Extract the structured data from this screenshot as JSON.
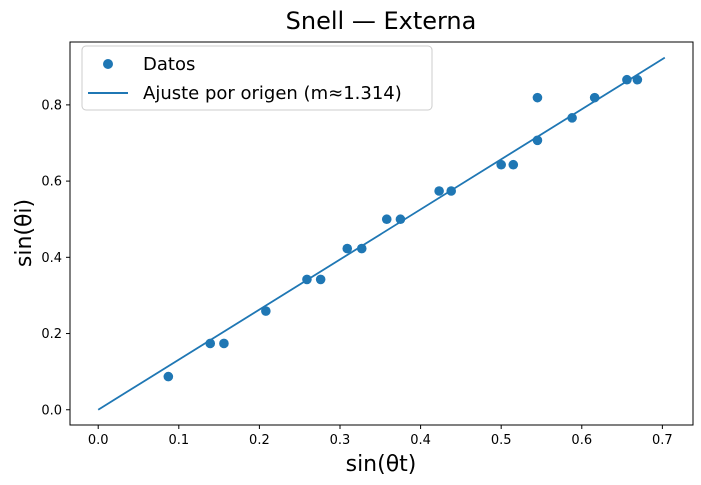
{
  "chart_data": {
    "type": "scatter",
    "title": "Snell — Externa",
    "xlabel": "sin(θt)",
    "ylabel": "sin(θi)",
    "xlim": [
      -0.035,
      0.738
    ],
    "ylim": [
      -0.04,
      0.965
    ],
    "xticks": [
      "0.0",
      "0.1",
      "0.2",
      "0.3",
      "0.4",
      "0.5",
      "0.6",
      "0.7"
    ],
    "yticks": [
      "0.0",
      "0.2",
      "0.4",
      "0.6",
      "0.8"
    ],
    "grid": false,
    "legend_position": "top-left",
    "colors": {
      "series": "#1f77b4"
    },
    "series": [
      {
        "name": "Datos",
        "kind": "scatter",
        "x": [
          0.087,
          0.139,
          0.156,
          0.208,
          0.259,
          0.276,
          0.309,
          0.327,
          0.358,
          0.375,
          0.423,
          0.438,
          0.5,
          0.515,
          0.545,
          0.545,
          0.588,
          0.616,
          0.656,
          0.669
        ],
        "y": [
          0.087,
          0.174,
          0.174,
          0.259,
          0.342,
          0.342,
          0.423,
          0.423,
          0.5,
          0.5,
          0.574,
          0.574,
          0.643,
          0.643,
          0.707,
          0.819,
          0.766,
          0.819,
          0.866,
          0.866
        ]
      },
      {
        "name": "Ajuste por origen (m≈1.314)",
        "kind": "line",
        "x": [
          0.0,
          0.703
        ],
        "y": [
          0.0,
          0.924
        ]
      }
    ]
  }
}
